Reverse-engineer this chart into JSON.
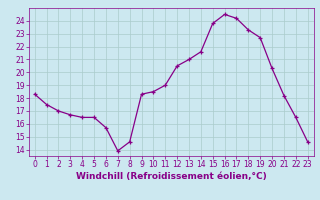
{
  "x": [
    0,
    1,
    2,
    3,
    4,
    5,
    6,
    7,
    8,
    9,
    10,
    11,
    12,
    13,
    14,
    15,
    16,
    17,
    18,
    19,
    20,
    21,
    22,
    23
  ],
  "y": [
    18.3,
    17.5,
    17.0,
    16.7,
    16.5,
    16.5,
    15.7,
    13.9,
    14.6,
    18.3,
    18.5,
    19.0,
    20.5,
    21.0,
    21.6,
    23.8,
    24.5,
    24.2,
    23.3,
    22.7,
    20.3,
    18.2,
    16.5,
    14.6
  ],
  "line_color": "#880088",
  "marker": "+",
  "bg_color": "#cce8f0",
  "grid_color": "#aacccc",
  "xlabel": "Windchill (Refroidissement éolien,°C)",
  "ylim": [
    13.5,
    25.0
  ],
  "yticks": [
    14,
    15,
    16,
    17,
    18,
    19,
    20,
    21,
    22,
    23,
    24
  ],
  "xticks": [
    0,
    1,
    2,
    3,
    4,
    5,
    6,
    7,
    8,
    9,
    10,
    11,
    12,
    13,
    14,
    15,
    16,
    17,
    18,
    19,
    20,
    21,
    22,
    23
  ],
  "xlim": [
    -0.5,
    23.5
  ],
  "label_color": "#880088",
  "label_fontsize": 6.5,
  "tick_fontsize": 5.5
}
